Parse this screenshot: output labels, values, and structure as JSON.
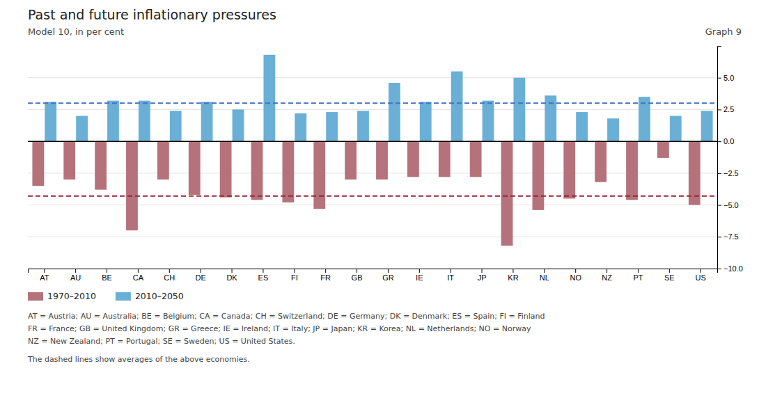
{
  "chart_data": {
    "type": "bar",
    "title": "Past and future inflationary pressures",
    "subtitle": "Model 10, in per cent",
    "annotations": [
      "Graph 9"
    ],
    "footnotes": [
      "AT = Austria;  AU = Australia;  BE = Belgium;  CA = Canada;  CH = Switzerland;  DE = Germany;  DK = Denmark;  ES = Spain;  FI = Finland",
      "FR = France;  GB = United  Kingdom;  GR = Greece;  IE = Ireland;  IT = Italy;  JP = Japan;  KR = Korea;  NL = Netherlands;  NO = Norway",
      "NZ = New Zealand; PT = Portugal; SE = Sweden; US = United States.",
      "The dashed lines show averages of the above economies."
    ],
    "categories": [
      "AT",
      "AU",
      "BE",
      "CA",
      "CH",
      "DE",
      "DK",
      "ES",
      "FI",
      "FR",
      "GB",
      "GR",
      "IE",
      "IT",
      "JP",
      "KR",
      "NL",
      "NO",
      "NZ",
      "PT",
      "SE",
      "US"
    ],
    "series": [
      {
        "name": "1970–2010",
        "color": "#b5727a",
        "values": [
          -3.5,
          -3.0,
          -3.8,
          -7.0,
          -3.0,
          -4.2,
          -4.4,
          -4.6,
          -4.8,
          -5.3,
          -3.0,
          -3.0,
          -2.8,
          -2.8,
          -2.8,
          -8.2,
          -5.4,
          -4.5,
          -3.2,
          -4.6,
          -1.3,
          -5.0
        ]
      },
      {
        "name": "2010–2050",
        "color": "#6aafd6",
        "values": [
          3.1,
          2.0,
          3.2,
          3.2,
          2.4,
          3.1,
          2.5,
          6.8,
          2.2,
          2.3,
          2.4,
          4.6,
          3.1,
          5.5,
          3.2,
          5.0,
          3.6,
          2.3,
          1.8,
          3.5,
          2.0,
          2.4
        ]
      }
    ],
    "reference_lines": [
      {
        "value": 3.0,
        "color": "#4472c4",
        "line_style": "dashed"
      },
      {
        "value": -4.3,
        "color": "#9b2335",
        "line_style": "dashed"
      }
    ],
    "ylim": [
      -10.0,
      7.5
    ],
    "yticks": [
      {
        "value": 5.0,
        "label": "5.0"
      },
      {
        "value": 2.5,
        "label": "2.5"
      },
      {
        "value": 0.0,
        "label": "0.0"
      },
      {
        "value": -2.5,
        "label": "−2.5"
      },
      {
        "value": -5.0,
        "label": "−5.0"
      },
      {
        "value": -7.5,
        "label": "−7.5"
      },
      {
        "value": -10.0,
        "label": "−10.0"
      }
    ],
    "grid": true,
    "legend": "bottom"
  }
}
